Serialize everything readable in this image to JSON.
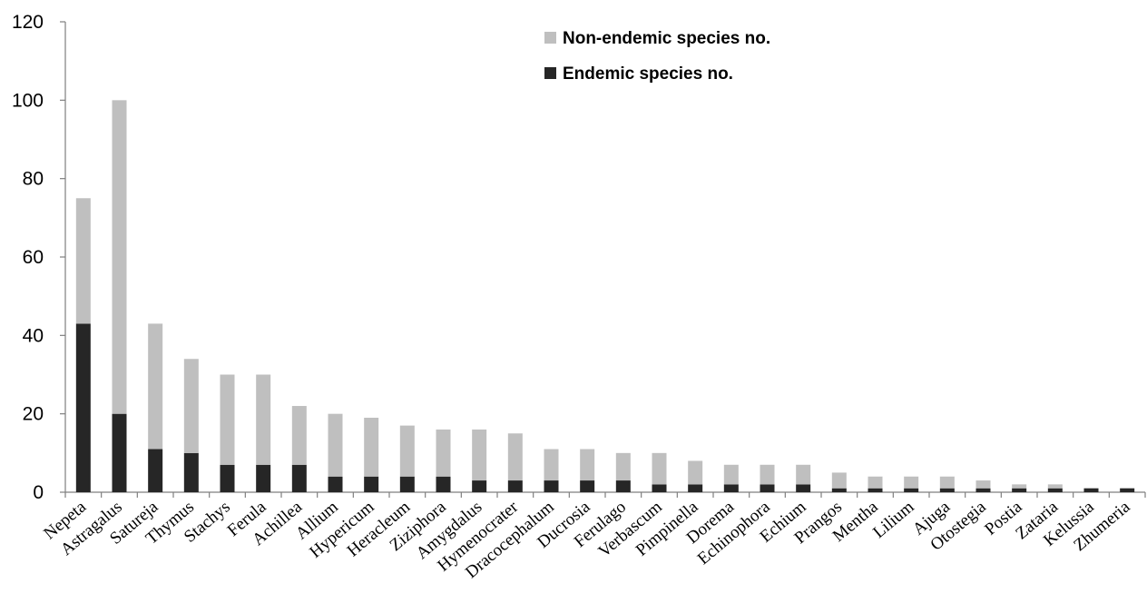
{
  "chart_data": {
    "type": "bar",
    "stacked": true,
    "categories": [
      "Nepeta",
      "Astragalus",
      "Satureja",
      "Thymus",
      "Stachys",
      "Ferula",
      "Achillea",
      "Allium",
      "Hypericum",
      "Heracleum",
      "Ziziphora",
      "Amygdalus",
      "Hymenocrater",
      "Dracocephalum",
      "Ducrosia",
      "Ferulago",
      "Verbascum",
      "Pimpinella",
      "Dorema",
      "Echinophora",
      "Echium",
      "Prangos",
      "Mentha",
      "Lilium",
      "Ajuga",
      "Otostegia",
      "Postia",
      "Zataria",
      "Kelussia",
      "Zhumeria"
    ],
    "series": [
      {
        "name": "Endemic species no.",
        "color": "#262626",
        "values": [
          43,
          20,
          11,
          10,
          7,
          7,
          7,
          4,
          4,
          4,
          4,
          3,
          3,
          3,
          3,
          3,
          2,
          2,
          2,
          2,
          2,
          1,
          1,
          1,
          1,
          1,
          1,
          1,
          1,
          1
        ]
      },
      {
        "name": "Non-endemic species no.",
        "color": "#bfbfbf",
        "values": [
          32,
          80,
          32,
          24,
          23,
          23,
          15,
          16,
          15,
          13,
          12,
          13,
          12,
          8,
          8,
          7,
          8,
          6,
          5,
          5,
          5,
          4,
          3,
          3,
          3,
          2,
          1,
          1,
          0,
          0
        ]
      }
    ],
    "legend_order": [
      1,
      0
    ],
    "yticks": [
      0,
      20,
      40,
      60,
      80,
      100,
      120
    ],
    "ylim": [
      0,
      120
    ],
    "title": "",
    "xlabel": "",
    "ylabel": "",
    "grid": false,
    "legend": "top-center"
  }
}
